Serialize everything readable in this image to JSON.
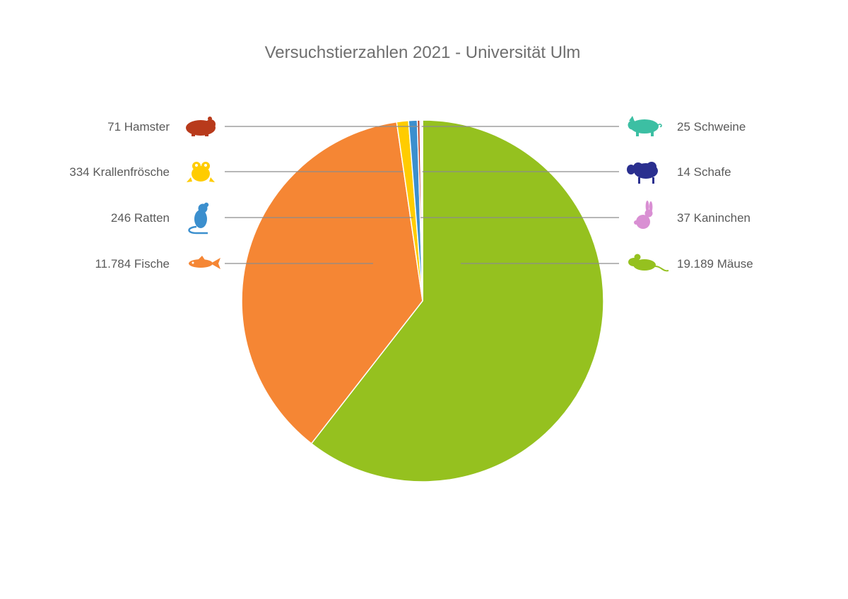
{
  "chart_data": {
    "type": "pie",
    "title": "Versuchstierzahlen 2021 - Universität Ulm",
    "slices": [
      {
        "name": "Mäuse",
        "value": 19189,
        "label": "19.189 Mäuse",
        "color": "#95c11f",
        "icon": "mouse-icon"
      },
      {
        "name": "Fische",
        "value": 11784,
        "label": "11.784 Fische",
        "color": "#f58634",
        "icon": "fish-icon"
      },
      {
        "name": "Krallenfrösche",
        "value": 334,
        "label": "334 Krallenfrösche",
        "color": "#ffcc00",
        "icon": "frog-icon"
      },
      {
        "name": "Ratten",
        "value": 246,
        "label": "246 Ratten",
        "color": "#3b8fce",
        "icon": "rat-icon"
      },
      {
        "name": "Hamster",
        "value": 71,
        "label": "71 Hamster",
        "color": "#b83a1b",
        "icon": "hamster-icon"
      },
      {
        "name": "Kaninchen",
        "value": 37,
        "label": "37 Kaninchen",
        "color": "#d98fd3",
        "icon": "rabbit-icon"
      },
      {
        "name": "Schweine",
        "value": 25,
        "label": "25 Schweine",
        "color": "#3cbfa3",
        "icon": "pig-icon"
      },
      {
        "name": "Schafe",
        "value": 14,
        "label": "14 Schafe",
        "color": "#2a2f8f",
        "icon": "sheep-icon"
      }
    ],
    "legend": "none",
    "grid": false
  }
}
